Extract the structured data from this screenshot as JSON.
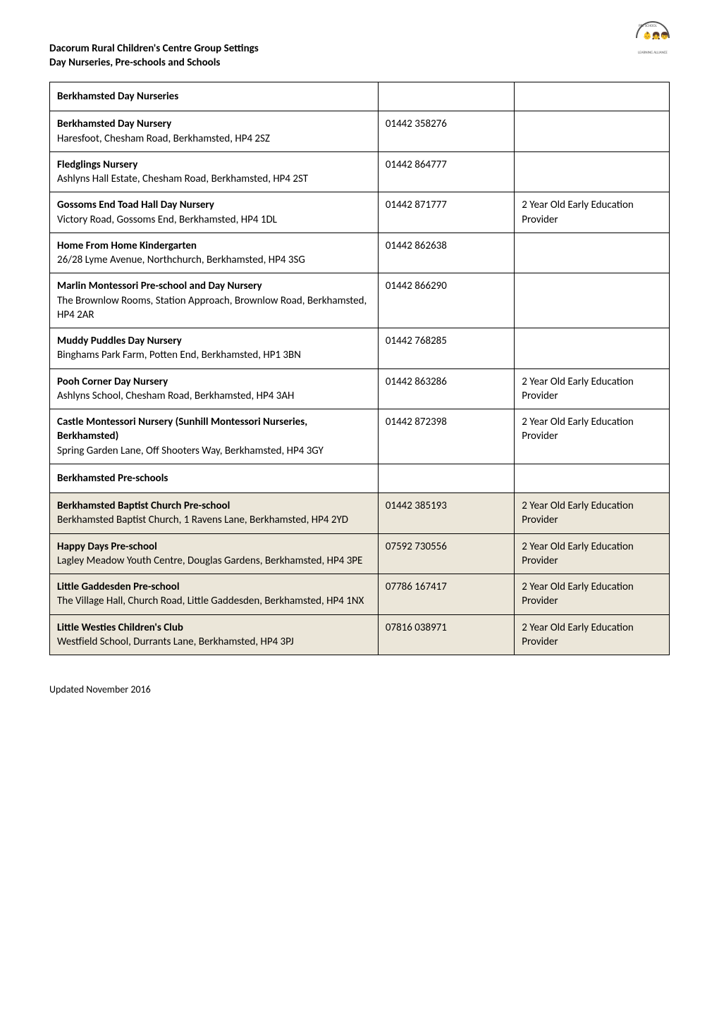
{
  "logo": {
    "arc_text": "PRE SCHOOL",
    "bottom_text": "LEARNING ALLIANCE"
  },
  "header": {
    "title": "Dacorum Rural Children's Centre Group Settings",
    "subtitle": "Day Nurseries, Pre-schools and Schools"
  },
  "sections": [
    {
      "header": "Berkhamsted Day Nurseries",
      "highlight": false,
      "rows": [
        {
          "name": "Berkhamsted Day Nursery",
          "address": "Haresfoot, Chesham Road, Berkhamsted, HP4 2SZ",
          "phone": "01442 358276",
          "note": "",
          "highlight": false
        },
        {
          "name": "Fledglings Nursery",
          "address": "Ashlyns Hall Estate, Chesham Road, Berkhamsted, HP4 2ST",
          "phone": "01442 864777",
          "note": "",
          "highlight": false
        },
        {
          "name": "Gossoms End Toad Hall Day Nursery",
          "address": "Victory Road, Gossoms End, Berkhamsted, HP4 1DL",
          "phone": "01442 871777",
          "note": "2 Year Old Early Education Provider",
          "highlight": false
        },
        {
          "name": "Home From Home Kindergarten",
          "address": "26/28 Lyme Avenue, Northchurch, Berkhamsted, HP4 3SG",
          "phone": "01442 862638",
          "note": "",
          "highlight": false
        },
        {
          "name": "Marlin Montessori Pre-school and Day Nursery",
          "address": "The Brownlow Rooms, Station Approach, Brownlow Road, Berkhamsted, HP4 2AR",
          "phone": "01442 866290",
          "note": "",
          "highlight": false
        },
        {
          "name": "Muddy Puddles Day Nursery",
          "address": "Binghams Park Farm, Potten End, Berkhamsted, HP1 3BN",
          "phone": "01442 768285",
          "note": "",
          "highlight": false
        },
        {
          "name": "Pooh Corner Day Nursery",
          "address": "Ashlyns School, Chesham Road, Berkhamsted, HP4 3AH",
          "phone": "01442 863286",
          "note": "2 Year Old Early Education Provider",
          "highlight": false
        },
        {
          "name": "Castle Montessori Nursery (Sunhill Montessori Nurseries, Berkhamsted)",
          "address": "Spring Garden Lane, Off Shooters Way, Berkhamsted, HP4 3GY",
          "phone": "01442 872398",
          "note": "2 Year Old Early Education Provider",
          "highlight": false
        }
      ]
    },
    {
      "header": "Berkhamsted Pre-schools",
      "highlight": false,
      "rows": [
        {
          "name": "Berkhamsted Baptist Church Pre-school",
          "address": "Berkhamsted Baptist Church, 1 Ravens Lane, Berkhamsted, HP4 2YD",
          "phone": "01442 385193",
          "note": "2 Year Old Early Education Provider",
          "highlight": true
        },
        {
          "name": "Happy Days Pre-school",
          "address": "Lagley Meadow Youth Centre, Douglas Gardens, Berkhamsted, HP4 3PE",
          "phone": "07592 730556",
          "note": "2 Year Old Early Education Provider",
          "highlight": true
        },
        {
          "name": "Little Gaddesden Pre-school",
          "address": "The Village Hall, Church Road, Little Gaddesden, Berkhamsted, HP4 1NX",
          "phone": "07786 167417",
          "note": "2 Year Old Early Education Provider",
          "highlight": true
        },
        {
          "name": "Little Westies Children's Club",
          "address": "Westfield School, Durrants Lane, Berkhamsted, HP4 3PJ",
          "phone": "07816 038971",
          "note": "2 Year Old Early Education Provider",
          "highlight": true
        }
      ]
    }
  ],
  "footer": "Updated November 2016",
  "colors": {
    "highlight_bg": "#ebe6d9",
    "border": "#000000",
    "text": "#000000",
    "background": "#ffffff"
  }
}
